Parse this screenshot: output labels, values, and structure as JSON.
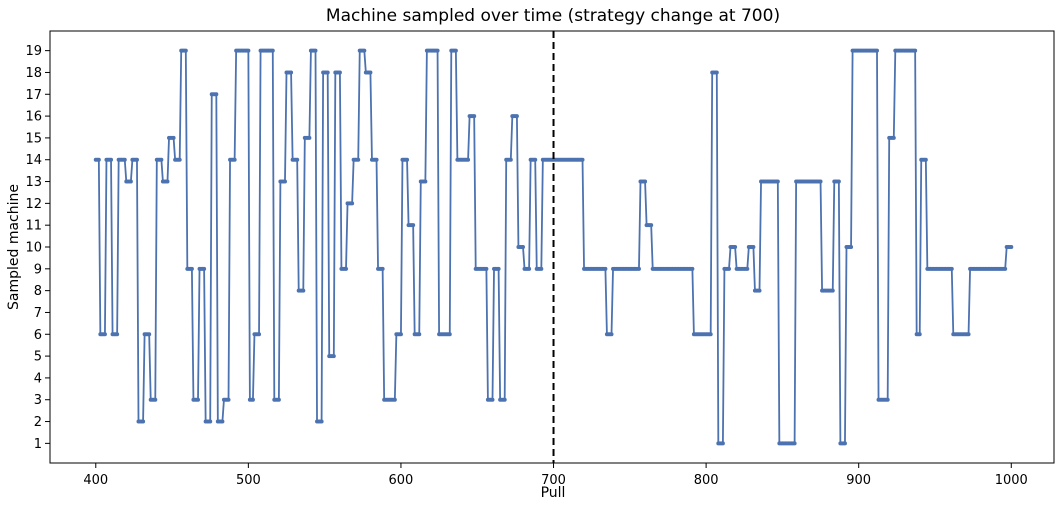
{
  "chart_data": {
    "type": "line",
    "title": "Machine sampled over time (strategy change at 700)",
    "xlabel": "Pull",
    "ylabel": "Sampled machine",
    "xlim": [
      370,
      1028
    ],
    "ylim": [
      0.1,
      19.9
    ],
    "xticks": [
      400,
      500,
      600,
      700,
      800,
      900,
      1000
    ],
    "yticks": [
      1,
      2,
      3,
      4,
      5,
      6,
      7,
      8,
      9,
      10,
      11,
      12,
      13,
      14,
      15,
      16,
      17,
      18,
      19
    ],
    "grid": false,
    "legend": "none",
    "line_color": "#4c72b0",
    "annotation_line": {
      "x": 700,
      "style": "dashed",
      "color": "#000000"
    },
    "series": [
      {
        "steps": [
          [
            400,
            14
          ],
          [
            403,
            6
          ],
          [
            407,
            14
          ],
          [
            411,
            6
          ],
          [
            415,
            14
          ],
          [
            420,
            13
          ],
          [
            424,
            14
          ],
          [
            428,
            2
          ],
          [
            432,
            6
          ],
          [
            436,
            3
          ],
          [
            440,
            14
          ],
          [
            444,
            13
          ],
          [
            448,
            15
          ],
          [
            452,
            14
          ],
          [
            456,
            19
          ],
          [
            460,
            9
          ],
          [
            464,
            3
          ],
          [
            468,
            9
          ],
          [
            472,
            2
          ],
          [
            476,
            17
          ],
          [
            480,
            2
          ],
          [
            484,
            3
          ],
          [
            488,
            14
          ],
          [
            492,
            19
          ],
          [
            501,
            3
          ],
          [
            504,
            6
          ],
          [
            508,
            19
          ],
          [
            517,
            3
          ],
          [
            521,
            13
          ],
          [
            525,
            18
          ],
          [
            529,
            14
          ],
          [
            533,
            8
          ],
          [
            537,
            15
          ],
          [
            541,
            19
          ],
          [
            545,
            2
          ],
          [
            549,
            18
          ],
          [
            553,
            5
          ],
          [
            557,
            18
          ],
          [
            561,
            9
          ],
          [
            565,
            12
          ],
          [
            569,
            14
          ],
          [
            573,
            19
          ],
          [
            577,
            18
          ],
          [
            581,
            14
          ],
          [
            585,
            9
          ],
          [
            589,
            3
          ],
          [
            597,
            6
          ],
          [
            601,
            14
          ],
          [
            605,
            11
          ],
          [
            609,
            6
          ],
          [
            613,
            13
          ],
          [
            617,
            19
          ],
          [
            625,
            6
          ],
          [
            633,
            19
          ],
          [
            637,
            14
          ],
          [
            645,
            16
          ],
          [
            649,
            9
          ],
          [
            657,
            3
          ],
          [
            661,
            9
          ],
          [
            665,
            3
          ],
          [
            669,
            14
          ],
          [
            673,
            16
          ],
          [
            677,
            10
          ],
          [
            681,
            9
          ],
          [
            685,
            14
          ],
          [
            689,
            9
          ],
          [
            693,
            14
          ],
          [
            700,
            14
          ],
          [
            719,
            14
          ],
          [
            720,
            9
          ],
          [
            734,
            9
          ],
          [
            735,
            6
          ],
          [
            738,
            6
          ],
          [
            739,
            9
          ],
          [
            756,
            9
          ],
          [
            757,
            13
          ],
          [
            760,
            13
          ],
          [
            761,
            11
          ],
          [
            764,
            11
          ],
          [
            765,
            9
          ],
          [
            791,
            9
          ],
          [
            792,
            6
          ],
          [
            803,
            6
          ],
          [
            804,
            18
          ],
          [
            808,
            1
          ],
          [
            812,
            9
          ],
          [
            816,
            10
          ],
          [
            820,
            9
          ],
          [
            828,
            10
          ],
          [
            832,
            8
          ],
          [
            836,
            13
          ],
          [
            847,
            13
          ],
          [
            848,
            1
          ],
          [
            858,
            1
          ],
          [
            859,
            13
          ],
          [
            875,
            13
          ],
          [
            876,
            8
          ],
          [
            883,
            8
          ],
          [
            884,
            13
          ],
          [
            887,
            13
          ],
          [
            888,
            1
          ],
          [
            892,
            10
          ],
          [
            896,
            19
          ],
          [
            912,
            19
          ],
          [
            913,
            3
          ],
          [
            919,
            3
          ],
          [
            920,
            15
          ],
          [
            924,
            19
          ],
          [
            937,
            19
          ],
          [
            938,
            6
          ],
          [
            941,
            14
          ],
          [
            945,
            9
          ],
          [
            961,
            9
          ],
          [
            962,
            6
          ],
          [
            972,
            6
          ],
          [
            973,
            9
          ],
          [
            996,
            9
          ],
          [
            997,
            10
          ],
          [
            1000,
            10
          ]
        ]
      }
    ]
  }
}
